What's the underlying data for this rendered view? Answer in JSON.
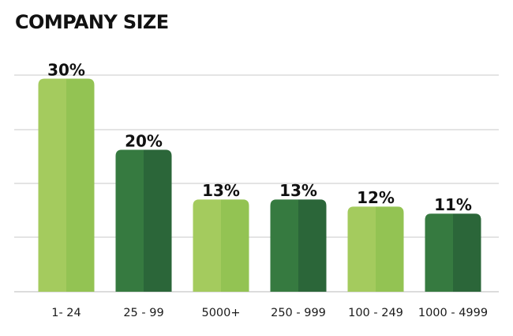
{
  "chart_data": {
    "type": "bar",
    "title": "COMPANY SIZE",
    "xlabel": "",
    "ylabel": "",
    "categories": [
      "1- 24",
      "25 - 99",
      "5000+",
      "250 - 999",
      "100 - 249",
      "1000 - 4999"
    ],
    "values": [
      30,
      20,
      13,
      13,
      12,
      11
    ],
    "value_labels": [
      "30%",
      "20%",
      "13%",
      "13%",
      "12%",
      "11%"
    ],
    "ylim": [
      0,
      32
    ],
    "grid": true,
    "legend": "none",
    "bar_colors": [
      {
        "light": "#a4cb5e",
        "dark": "#93c353"
      },
      {
        "light": "#367a40",
        "dark": "#2b6639"
      },
      {
        "light": "#a4cb5e",
        "dark": "#93c353"
      },
      {
        "light": "#367a40",
        "dark": "#2b6639"
      },
      {
        "light": "#a4cb5e",
        "dark": "#93c353"
      },
      {
        "light": "#367a40",
        "dark": "#2b6639"
      }
    ],
    "grid_color": "#c8c8c8"
  }
}
